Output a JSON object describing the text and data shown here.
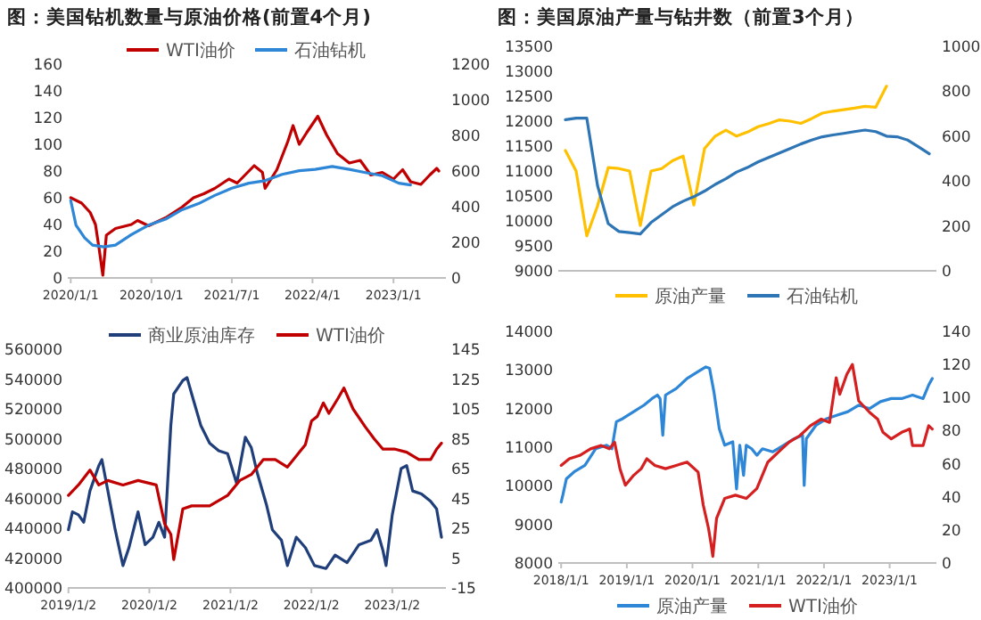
{
  "chart_data": [
    {
      "type": "line",
      "title": "图：美国钻机数量与原油价格(前置4个月)",
      "legend": "top",
      "xlim": [
        "2019-12-22",
        "2023-06-28"
      ],
      "xticks": [
        {
          "value": "2020-01-01",
          "label": "2020/1/1"
        },
        {
          "value": "2020-10-01",
          "label": "2020/10/1"
        },
        {
          "value": "2021-07-01",
          "label": "2021/7/1"
        },
        {
          "value": "2022-04-01",
          "label": "2022/4/1"
        },
        {
          "value": "2023-01-01",
          "label": "2023/1/1"
        }
      ],
      "ylim": [
        0,
        160
      ],
      "yticks": [
        0,
        20,
        40,
        60,
        80,
        100,
        120,
        140,
        160
      ],
      "y2lim": [
        0,
        1200
      ],
      "y2ticks": [
        0,
        200,
        400,
        600,
        800,
        1000,
        1200
      ],
      "series": [
        {
          "name": "WTI油价",
          "color": "#c00000",
          "x": [
            "2020-01-01",
            "2020-02-07",
            "2020-03-07",
            "2020-03-25",
            "2020-04-07",
            "2020-04-19",
            "2020-05-01",
            "2020-06-01",
            "2020-07-25",
            "2020-08-15",
            "2020-09-21",
            "2020-11-18",
            "2021-01-13",
            "2021-02-21",
            "2021-03-28",
            "2021-05-04",
            "2021-06-21",
            "2021-07-19",
            "2021-09-15",
            "2021-10-13",
            "2021-10-22",
            "2021-12-01",
            "2022-01-07",
            "2022-01-25",
            "2022-02-15",
            "2022-03-13",
            "2022-04-19",
            "2022-05-19",
            "2022-06-25",
            "2022-08-04",
            "2022-09-10",
            "2022-10-16",
            "2022-11-24",
            "2023-01-01",
            "2023-02-01",
            "2023-02-28",
            "2023-04-04",
            "2023-05-04",
            "2023-05-28",
            "2023-06-04"
          ],
          "values": [
            60,
            56,
            49,
            40,
            21,
            2,
            32,
            37,
            40,
            43,
            39,
            45,
            53,
            60,
            63,
            67,
            74,
            71,
            84,
            79,
            67,
            81,
            102,
            114,
            100,
            109,
            121,
            107,
            93,
            86,
            88,
            77,
            79,
            74,
            81,
            72,
            70,
            77,
            82,
            80
          ]
        },
        {
          "name": "石油钻机",
          "color": "#2e86d6",
          "axis": "y2",
          "x": [
            "2020-01-01",
            "2020-01-19",
            "2020-02-17",
            "2020-03-15",
            "2020-04-22",
            "2020-06-01",
            "2020-07-25",
            "2020-09-21",
            "2020-11-18",
            "2021-01-13",
            "2021-03-10",
            "2021-05-04",
            "2021-07-01",
            "2021-08-28",
            "2021-10-22",
            "2021-12-19",
            "2022-02-15",
            "2022-04-10",
            "2022-06-07",
            "2022-08-04",
            "2022-09-28",
            "2022-11-24",
            "2023-01-19",
            "2023-02-28"
          ],
          "values": [
            435,
            296,
            226,
            184,
            174,
            184,
            243,
            296,
            330,
            383,
            417,
            463,
            504,
            532,
            546,
            581,
            602,
            609,
            626,
            609,
            591,
            574,
            532,
            522
          ]
        }
      ]
    },
    {
      "type": "line",
      "title": "图：美国原油产量与钻井数（前置3个月）",
      "legend": "bottom",
      "tick_labels": "y",
      "categories": [
        null,
        null,
        null,
        null,
        null,
        null,
        null,
        null,
        null,
        null,
        null,
        null,
        null,
        null,
        null,
        null,
        null,
        null,
        null,
        null,
        null,
        null,
        null,
        null,
        null,
        null,
        null,
        null,
        null,
        null,
        null,
        null,
        null,
        null,
        null
      ],
      "ylim": [
        9000,
        13500
      ],
      "yticks": [
        9000,
        9500,
        10000,
        10500,
        11000,
        11500,
        12000,
        12500,
        13000,
        13500
      ],
      "y2lim": [
        0,
        1000
      ],
      "y2ticks": [
        0,
        200,
        400,
        600,
        800,
        1000
      ],
      "series": [
        {
          "name": "原油产量",
          "color": "#ffc000",
          "values": [
            11410,
            11000,
            9700,
            10300,
            11068,
            11050,
            11000,
            9907,
            11000,
            11050,
            11205,
            11300,
            10317,
            11450,
            11700,
            11820,
            11700,
            11780,
            11888,
            11950,
            12025,
            12000,
            11956,
            12050,
            12161,
            12200,
            12230,
            12260,
            12298,
            12280,
            12700,
            null,
            null,
            null,
            null
          ]
        },
        {
          "name": "石油钻机",
          "color": "#2e75b6",
          "axis": "y2",
          "values": [
            673,
            680,
            680,
            380,
            210,
            175,
            170,
            164,
            215,
            250,
            285,
            310,
            330,
            355,
            385,
            410,
            440,
            460,
            485,
            505,
            525,
            545,
            565,
            582,
            597,
            605,
            612,
            620,
            627,
            620,
            600,
            597,
            582,
            552,
            521
          ]
        }
      ]
    },
    {
      "type": "line",
      "legend": "top",
      "xlim": [
        "2018-12-30",
        "2023-09-01"
      ],
      "xticks": [
        {
          "value": "2019-01-02",
          "label": "2019/1/2"
        },
        {
          "value": "2020-01-02",
          "label": "2020/1/2"
        },
        {
          "value": "2021-01-02",
          "label": "2021/1/2"
        },
        {
          "value": "2022-01-02",
          "label": "2022/1/2"
        },
        {
          "value": "2023-01-02",
          "label": "2023/1/2"
        }
      ],
      "ylim": [
        400000,
        560000
      ],
      "yticks": [
        400000,
        420000,
        440000,
        460000,
        480000,
        500000,
        520000,
        540000,
        560000
      ],
      "y2lim": [
        -15,
        145
      ],
      "y2ticks": [
        -15,
        5,
        25,
        45,
        65,
        85,
        105,
        125,
        145
      ],
      "series": [
        {
          "name": "商业原油库存",
          "color": "#203f7a",
          "x": [
            "2019-01-02",
            "2019-01-20",
            "2019-02-16",
            "2019-03-12",
            "2019-04-09",
            "2019-05-19",
            "2019-06-02",
            "2019-06-29",
            "2019-08-01",
            "2019-09-05",
            "2019-10-02",
            "2019-11-12",
            "2019-12-14",
            "2020-01-18",
            "2020-02-14",
            "2020-03-11",
            "2020-04-08",
            "2020-04-21",
            "2020-06-01",
            "2020-06-20",
            "2020-07-11",
            "2020-08-21",
            "2020-09-30",
            "2020-11-10",
            "2020-12-20",
            "2021-01-30",
            "2021-03-10",
            "2021-04-06",
            "2021-05-03",
            "2021-06-13",
            "2021-07-10",
            "2021-08-20",
            "2021-09-16",
            "2021-10-26",
            "2021-12-06",
            "2022-01-16",
            "2022-03-09",
            "2022-04-19",
            "2022-06-12",
            "2022-08-05",
            "2022-09-28",
            "2022-10-25",
            "2022-11-21",
            "2022-12-05",
            "2023-01-02",
            "2023-02-11",
            "2023-03-08",
            "2023-04-04",
            "2023-05-14",
            "2023-06-24",
            "2023-07-21",
            "2023-08-12"
          ],
          "values": [
            439000,
            451000,
            449000,
            444000,
            465000,
            482000,
            486000,
            465000,
            439000,
            415000,
            427000,
            451000,
            429000,
            434000,
            444000,
            434000,
            509000,
            530000,
            539000,
            541000,
            530000,
            509000,
            497000,
            492000,
            490000,
            470000,
            501000,
            494000,
            477000,
            456000,
            439000,
            432000,
            415000,
            434000,
            427000,
            415000,
            413000,
            422000,
            417000,
            429000,
            432000,
            439000,
            425000,
            415000,
            449000,
            480000,
            482000,
            465000,
            463000,
            458000,
            453000,
            434000
          ]
        },
        {
          "name": "WTI油价",
          "color": "#c00000",
          "axis": "y2",
          "x": [
            "2019-01-02",
            "2019-02-16",
            "2019-04-09",
            "2019-05-19",
            "2019-06-29",
            "2019-09-05",
            "2019-11-12",
            "2020-02-02",
            "2020-03-11",
            "2020-04-08",
            "2020-04-21",
            "2020-06-01",
            "2020-07-11",
            "2020-09-30",
            "2020-12-20",
            "2021-02-13",
            "2021-04-06",
            "2021-05-30",
            "2021-07-23",
            "2021-09-16",
            "2021-11-09",
            "2021-12-06",
            "2022-01-03",
            "2022-01-29",
            "2022-02-25",
            "2022-03-22",
            "2022-05-02",
            "2022-05-29",
            "2022-07-09",
            "2022-09-02",
            "2022-10-12",
            "2022-11-21",
            "2023-01-15",
            "2023-03-08",
            "2023-05-02",
            "2023-06-24",
            "2023-07-21",
            "2023-08-12"
          ],
          "values": [
            47,
            54,
            64,
            54,
            57,
            54,
            57,
            54,
            28,
            21,
            4,
            38,
            40,
            40,
            47,
            57,
            61,
            71,
            71,
            66,
            76,
            81,
            97,
            100,
            109,
            102,
            112,
            119,
            105,
            93,
            85,
            78,
            78,
            76,
            71,
            71,
            78,
            82
          ]
        }
      ]
    },
    {
      "type": "line",
      "legend": "bottom",
      "xlim": [
        "2017-12-16",
        "2023-09-18"
      ],
      "xticks": [
        {
          "value": "2018-01-01",
          "label": "2018/1/1"
        },
        {
          "value": "2019-01-01",
          "label": "2019/1/1"
        },
        {
          "value": "2020-01-01",
          "label": "2020/1/1"
        },
        {
          "value": "2021-01-01",
          "label": "2021/1/1"
        },
        {
          "value": "2022-01-01",
          "label": "2022/1/1"
        },
        {
          "value": "2023-01-01",
          "label": "2023/1/1"
        }
      ],
      "ylim": [
        8000,
        14000
      ],
      "yticks": [
        8000,
        9000,
        10000,
        11000,
        12000,
        13000,
        14000
      ],
      "y2lim": [
        0,
        140
      ],
      "y2ticks": [
        0,
        20,
        40,
        60,
        80,
        100,
        120,
        140
      ],
      "series": [
        {
          "name": "原油产量",
          "color": "#2e86d6",
          "x": [
            "2018-01-01",
            "2018-01-10",
            "2018-01-30",
            "2018-03-14",
            "2018-05-13",
            "2018-07-12",
            "2018-09-11",
            "2018-10-10",
            "2018-11-04",
            "2018-12-09",
            "2019-02-08",
            "2019-04-07",
            "2019-05-21",
            "2019-06-20",
            "2019-07-05",
            "2019-07-20",
            "2019-08-04",
            "2019-10-03",
            "2019-12-02",
            "2020-02-01",
            "2020-03-15",
            "2020-04-05",
            "2020-04-29",
            "2020-05-29",
            "2020-06-28",
            "2020-08-12",
            "2020-09-02",
            "2020-09-20",
            "2020-10-11",
            "2020-10-26",
            "2020-11-25",
            "2020-12-24",
            "2021-01-24",
            "2021-03-23",
            "2021-05-22",
            "2021-07-20",
            "2021-09-04",
            "2021-09-13",
            "2021-09-25",
            "2021-11-18",
            "2022-01-17",
            "2022-03-16",
            "2022-05-14",
            "2022-07-13",
            "2022-09-12",
            "2022-11-11",
            "2023-01-10",
            "2023-03-09",
            "2023-05-08",
            "2023-07-06",
            "2023-08-06",
            "2023-08-26"
          ],
          "values": [
            9580,
            9750,
            10180,
            10360,
            10530,
            10960,
            11050,
            10960,
            11660,
            11740,
            11920,
            12090,
            12260,
            12350,
            12260,
            11310,
            12350,
            12520,
            12780,
            12960,
            13080,
            13040,
            12440,
            11480,
            11050,
            11140,
            9920,
            11050,
            10270,
            11050,
            10960,
            10790,
            10960,
            10880,
            11050,
            11220,
            11310,
            10010,
            11220,
            11570,
            11740,
            11830,
            11920,
            12090,
            12000,
            12180,
            12260,
            12260,
            12350,
            12260,
            12610,
            12780
          ]
        },
        {
          "name": "WTI油价",
          "color": "#d42020",
          "axis": "y2",
          "x": [
            "2018-01-01",
            "2018-02-15",
            "2018-04-14",
            "2018-06-13",
            "2018-08-12",
            "2018-09-26",
            "2018-10-25",
            "2018-11-24",
            "2018-12-24",
            "2019-02-08",
            "2019-03-22",
            "2019-04-22",
            "2019-06-06",
            "2019-08-04",
            "2019-10-03",
            "2019-12-02",
            "2020-02-01",
            "2020-03-01",
            "2020-03-30",
            "2020-04-14",
            "2020-04-23",
            "2020-05-14",
            "2020-06-28",
            "2020-08-27",
            "2020-10-26",
            "2020-12-24",
            "2021-02-23",
            "2021-04-22",
            "2021-06-21",
            "2021-08-20",
            "2021-10-18",
            "2021-12-17",
            "2022-02-01",
            "2022-03-10",
            "2022-03-30",
            "2022-05-08",
            "2022-06-08",
            "2022-07-13",
            "2022-09-12",
            "2022-10-26",
            "2022-11-25",
            "2023-01-10",
            "2023-03-09",
            "2023-04-23",
            "2023-05-08",
            "2023-07-06",
            "2023-08-06",
            "2023-08-26"
          ],
          "values": [
            59,
            63,
            65,
            69,
            71,
            69,
            73,
            57,
            47,
            53,
            57,
            63,
            59,
            57,
            59,
            61,
            55,
            35,
            21,
            11,
            4,
            27,
            39,
            41,
            39,
            45,
            61,
            67,
            73,
            77,
            83,
            87,
            85,
            112,
            102,
            114,
            120,
            98,
            91,
            87,
            79,
            75,
            79,
            81,
            71,
            71,
            83,
            81
          ]
        }
      ]
    }
  ]
}
